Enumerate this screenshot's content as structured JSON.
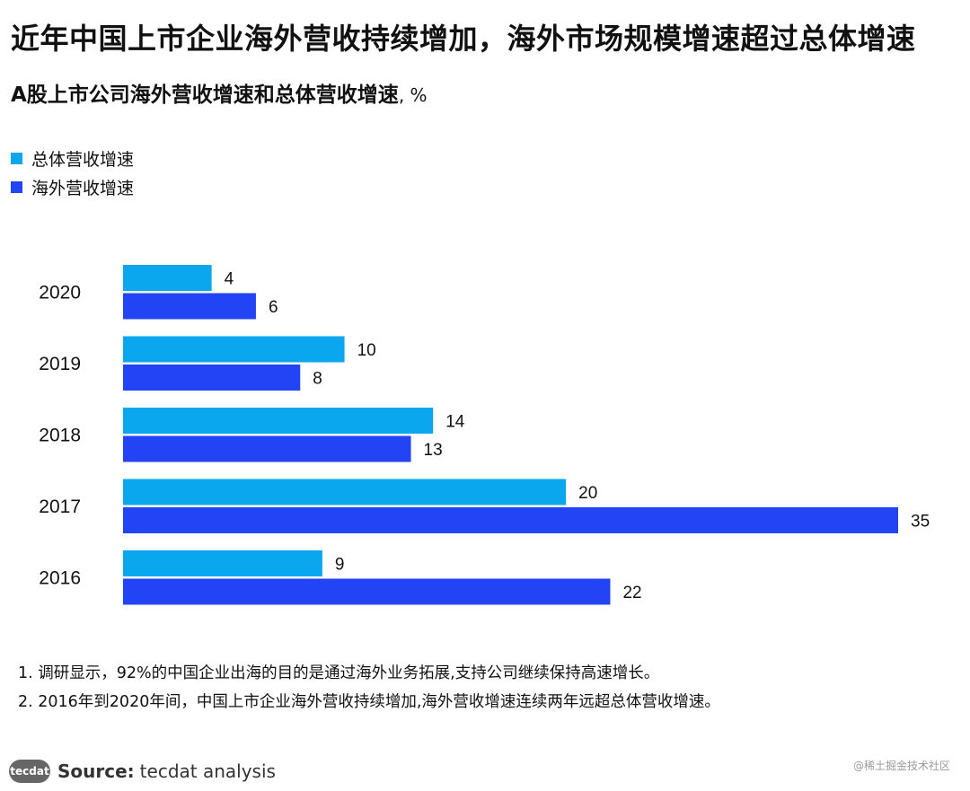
{
  "title": "近年中国上市企业海外营收持续增加，海外市场规模增速超过总体增速",
  "subtitle": {
    "main": "A股上市公司海外营收增速和总体营收增速",
    "unit": ", %"
  },
  "colors": {
    "total": "#0aa6ee",
    "overseas": "#2244f5"
  },
  "chart_data": {
    "type": "bar",
    "orientation": "horizontal",
    "categories": [
      "2020",
      "2019",
      "2018",
      "2017",
      "2016"
    ],
    "series": [
      {
        "name": "总体营收增速",
        "values": [
          4,
          10,
          14,
          20,
          9
        ]
      },
      {
        "name": "海外营收增速",
        "values": [
          6,
          8,
          13,
          35,
          22
        ]
      }
    ],
    "xlim": [
      0,
      35
    ],
    "legend_position": "top-left",
    "grid": false,
    "data_labels": true
  },
  "notes": [
    "1. 调研显示，92%的中国企业出海的目的是通过海外业务拓展,支持公司继续保持高速增长。",
    "2. 2016年到2020年间，中国上市企业海外营收持续增加,海外营收增速连续两年远超总体营收增速。"
  ],
  "source": {
    "logo_text": "tecdat",
    "label": "Source:",
    "value": "tecdat analysis"
  },
  "watermark": "@稀土掘金技术社区"
}
